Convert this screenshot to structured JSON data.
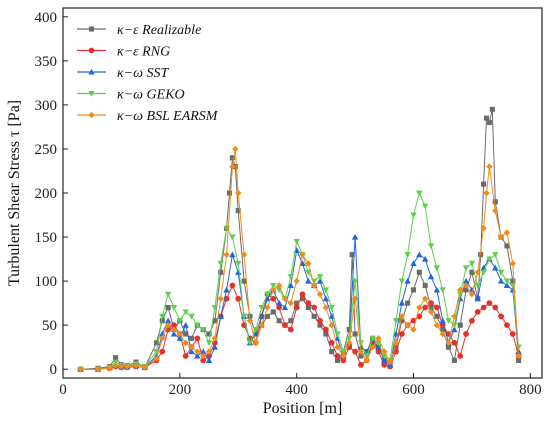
{
  "chart_data": {
    "type": "line",
    "xlabel": "Position [m]",
    "ylabel": "Turbulent Shear Stress τ [Pa]",
    "xlim": [
      0,
      820
    ],
    "ylim": [
      -10,
      410
    ],
    "xticks": [
      0,
      200,
      400,
      600,
      800
    ],
    "yticks": [
      0,
      50,
      100,
      150,
      200,
      250,
      300,
      350,
      400
    ],
    "legend_position": "top-left",
    "grid": false,
    "series": [
      {
        "name": "κ−ε  Realizable",
        "color": "#6b6b6b",
        "marker": "square",
        "x": [
          30,
          60,
          80,
          90,
          100,
          110,
          125,
          140,
          160,
          170,
          180,
          190,
          200,
          210,
          220,
          230,
          240,
          250,
          260,
          270,
          280,
          285,
          290,
          295,
          300,
          310,
          320,
          330,
          340,
          350,
          360,
          370,
          380,
          390,
          400,
          410,
          420,
          430,
          440,
          450,
          460,
          470,
          480,
          490,
          495,
          500,
          510,
          520,
          530,
          540,
          550,
          560,
          570,
          580,
          590,
          600,
          610,
          620,
          630,
          640,
          650,
          660,
          670,
          680,
          690,
          700,
          710,
          715,
          720,
          725,
          730,
          735,
          740,
          750,
          760,
          770,
          780
        ],
        "y": [
          0,
          1,
          3,
          13,
          5,
          4,
          8,
          2,
          30,
          55,
          70,
          45,
          55,
          40,
          35,
          50,
          45,
          40,
          55,
          110,
          160,
          200,
          240,
          230,
          180,
          100,
          60,
          40,
          50,
          60,
          65,
          55,
          50,
          55,
          75,
          80,
          70,
          60,
          50,
          40,
          20,
          10,
          20,
          45,
          130,
          40,
          15,
          20,
          35,
          25,
          10,
          8,
          25,
          55,
          75,
          90,
          110,
          95,
          70,
          60,
          45,
          25,
          10,
          50,
          90,
          110,
          80,
          130,
          210,
          285,
          280,
          295,
          190,
          150,
          140,
          100,
          10
        ]
      },
      {
        "name": "κ−ε  RNG",
        "color": "#e4322b",
        "marker": "circle",
        "x": [
          30,
          60,
          80,
          90,
          100,
          110,
          125,
          140,
          160,
          170,
          180,
          190,
          200,
          210,
          220,
          230,
          240,
          250,
          260,
          270,
          280,
          290,
          300,
          310,
          320,
          330,
          340,
          350,
          360,
          370,
          380,
          390,
          400,
          410,
          420,
          430,
          440,
          450,
          460,
          470,
          480,
          490,
          500,
          510,
          520,
          530,
          540,
          550,
          560,
          570,
          580,
          590,
          600,
          610,
          620,
          630,
          640,
          650,
          660,
          670,
          680,
          690,
          700,
          710,
          720,
          730,
          740,
          750,
          760,
          770,
          780
        ],
        "y": [
          0,
          0,
          1,
          3,
          2,
          2,
          3,
          2,
          10,
          20,
          45,
          50,
          40,
          15,
          25,
          35,
          10,
          15,
          30,
          60,
          80,
          95,
          80,
          50,
          35,
          30,
          60,
          85,
          80,
          70,
          50,
          45,
          70,
          85,
          75,
          70,
          55,
          45,
          30,
          15,
          10,
          25,
          20,
          5,
          10,
          30,
          20,
          5,
          3,
          20,
          40,
          50,
          55,
          60,
          70,
          75,
          70,
          50,
          40,
          30,
          15,
          40,
          55,
          65,
          70,
          75,
          70,
          60,
          50,
          40,
          15
        ]
      },
      {
        "name": "κ−ω  SST",
        "color": "#2066d8",
        "marker": "triangle-up",
        "x": [
          30,
          60,
          80,
          90,
          100,
          110,
          125,
          140,
          160,
          170,
          180,
          190,
          200,
          210,
          220,
          230,
          240,
          250,
          260,
          270,
          280,
          290,
          300,
          310,
          320,
          330,
          340,
          350,
          360,
          370,
          380,
          390,
          400,
          410,
          420,
          430,
          440,
          450,
          460,
          470,
          480,
          490,
          500,
          510,
          520,
          530,
          540,
          550,
          560,
          570,
          580,
          590,
          600,
          610,
          620,
          630,
          640,
          650,
          660,
          670,
          680,
          690,
          700,
          710,
          720,
          730,
          740,
          750,
          760,
          770,
          780
        ],
        "y": [
          0,
          0,
          2,
          5,
          3,
          3,
          4,
          2,
          15,
          40,
          55,
          40,
          35,
          50,
          20,
          15,
          20,
          10,
          25,
          60,
          90,
          130,
          110,
          60,
          30,
          40,
          60,
          80,
          90,
          75,
          70,
          95,
          135,
          120,
          100,
          95,
          100,
          80,
          60,
          35,
          15,
          30,
          150,
          25,
          20,
          30,
          25,
          10,
          5,
          40,
          75,
          100,
          120,
          130,
          125,
          105,
          90,
          55,
          30,
          45,
          80,
          100,
          90,
          80,
          115,
          125,
          115,
          100,
          95,
          90,
          20
        ]
      },
      {
        "name": "κ−ω  GEKO",
        "color": "#5fcf4e",
        "marker": "triangle-down",
        "x": [
          30,
          60,
          80,
          90,
          100,
          110,
          125,
          140,
          160,
          170,
          180,
          190,
          200,
          210,
          220,
          230,
          240,
          250,
          260,
          270,
          280,
          290,
          300,
          310,
          320,
          330,
          340,
          350,
          360,
          370,
          380,
          390,
          400,
          410,
          420,
          430,
          440,
          450,
          460,
          470,
          480,
          490,
          500,
          510,
          520,
          530,
          540,
          550,
          560,
          570,
          580,
          590,
          600,
          610,
          620,
          630,
          640,
          650,
          660,
          670,
          680,
          690,
          700,
          710,
          720,
          730,
          740,
          750,
          760,
          770,
          780
        ],
        "y": [
          0,
          0,
          2,
          8,
          4,
          3,
          6,
          3,
          20,
          60,
          85,
          70,
          55,
          65,
          60,
          50,
          45,
          30,
          70,
          120,
          160,
          150,
          120,
          60,
          30,
          45,
          70,
          85,
          95,
          90,
          80,
          105,
          145,
          130,
          110,
          100,
          105,
          90,
          70,
          40,
          20,
          35,
          100,
          30,
          15,
          35,
          30,
          15,
          10,
          55,
          100,
          130,
          175,
          200,
          185,
          140,
          115,
          90,
          55,
          50,
          85,
          115,
          120,
          95,
          110,
          125,
          130,
          110,
          100,
          95,
          25
        ]
      },
      {
        "name": "κ−ω  BSL EARSM",
        "color": "#f08c1e",
        "marker": "diamond",
        "x": [
          30,
          60,
          80,
          90,
          100,
          110,
          125,
          140,
          160,
          170,
          180,
          190,
          200,
          210,
          220,
          230,
          240,
          250,
          260,
          270,
          280,
          290,
          295,
          300,
          310,
          320,
          330,
          340,
          350,
          360,
          370,
          380,
          390,
          400,
          410,
          420,
          430,
          440,
          450,
          460,
          470,
          480,
          490,
          500,
          510,
          520,
          530,
          540,
          550,
          560,
          570,
          580,
          590,
          600,
          610,
          620,
          630,
          640,
          650,
          660,
          670,
          680,
          690,
          700,
          710,
          720,
          725,
          730,
          740,
          750,
          760,
          770,
          780
        ],
        "y": [
          0,
          0,
          1,
          4,
          3,
          3,
          4,
          2,
          12,
          35,
          50,
          45,
          40,
          30,
          25,
          20,
          15,
          20,
          35,
          80,
          130,
          230,
          250,
          200,
          130,
          55,
          30,
          50,
          70,
          90,
          95,
          80,
          75,
          100,
          130,
          120,
          95,
          85,
          70,
          50,
          25,
          15,
          30,
          80,
          20,
          10,
          25,
          35,
          20,
          8,
          30,
          60,
          50,
          45,
          70,
          80,
          65,
          50,
          40,
          30,
          60,
          90,
          95,
          85,
          110,
          160,
          200,
          230,
          180,
          150,
          155,
          120,
          15
        ]
      }
    ]
  }
}
